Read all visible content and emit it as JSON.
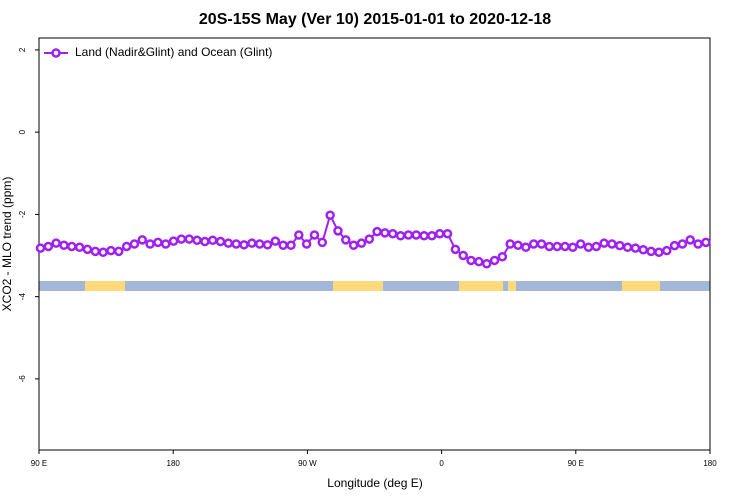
{
  "chart_data": {
    "type": "line",
    "title": "20S-15S May (Ver 10)   2015-01-01 to 2020-12-18",
    "x_label": "Longitude (deg E)",
    "y_label": "XCO2 - MLO trend (ppm)",
    "xlim": [
      90,
      540
    ],
    "xticks": [
      {
        "value": 90,
        "label": "90 E"
      },
      180,
      {
        "value": 270,
        "label": "90 W"
      },
      {
        "value": 360,
        "label": "0"
      },
      {
        "value": 450,
        "label": "90 E"
      },
      {
        "value": 540,
        "label": "180"
      }
    ],
    "ylim": [
      -7.73,
      2.29
    ],
    "yticks": [
      -6,
      -4,
      -2,
      0,
      2
    ],
    "legend": "top-left",
    "x": [
      91,
      96.25,
      101.5,
      106.75,
      112,
      117.25,
      122.5,
      127.75,
      133,
      138.25,
      143.5,
      148.75,
      154,
      159.25,
      164.5,
      169.75,
      175,
      180.25,
      185.5,
      190.75,
      196,
      201.25,
      206.5,
      211.75,
      217,
      222.25,
      227.5,
      232.75,
      238,
      243.25,
      248.5,
      253.75,
      259,
      264.25,
      269.5,
      274.75,
      280,
      285.25,
      290.5,
      295.75,
      301,
      306.25,
      311.5,
      316.75,
      322,
      327.25,
      332.5,
      337.75,
      343,
      348.25,
      353.5,
      358.75,
      364,
      369.25,
      374.5,
      379.75,
      385,
      390.25,
      395.5,
      400.75,
      406,
      411.25,
      416.5,
      421.75,
      427,
      432.25,
      437.5,
      442.75,
      448,
      453.25,
      458.5,
      463.75,
      469,
      474.25,
      479.5,
      484.75,
      490,
      495.25,
      500.5,
      505.75,
      511,
      516.25,
      521.5,
      526.75,
      532,
      537.25
    ],
    "series": [
      {
        "name": "Land (Nadir&Glint) and Ocean (Glint)",
        "color": "#a020f0",
        "values": [
          -2.82,
          -2.78,
          -2.7,
          -2.75,
          -2.78,
          -2.8,
          -2.85,
          -2.9,
          -2.92,
          -2.88,
          -2.9,
          -2.78,
          -2.72,
          -2.62,
          -2.72,
          -2.68,
          -2.72,
          -2.65,
          -2.6,
          -2.6,
          -2.63,
          -2.66,
          -2.63,
          -2.66,
          -2.7,
          -2.72,
          -2.74,
          -2.7,
          -2.72,
          -2.74,
          -2.65,
          -2.75,
          -2.75,
          -2.5,
          -2.72,
          -2.5,
          -2.68,
          -2.02,
          -2.4,
          -2.62,
          -2.75,
          -2.7,
          -2.6,
          -2.42,
          -2.45,
          -2.47,
          -2.52,
          -2.5,
          -2.5,
          -2.52,
          -2.52,
          -2.47,
          -2.47,
          -2.85,
          -3.0,
          -3.12,
          -3.15,
          -3.2,
          -3.12,
          -3.03,
          -2.72,
          -2.75,
          -2.8,
          -2.72,
          -2.72,
          -2.78,
          -2.78,
          -2.78,
          -2.8,
          -2.72,
          -2.8,
          -2.78,
          -2.7,
          -2.72,
          -2.76,
          -2.8,
          -2.82,
          -2.86,
          -2.9,
          -2.92,
          -2.88,
          -2.76,
          -2.72,
          -2.62,
          -2.72,
          -2.68
        ]
      }
    ]
  }
}
